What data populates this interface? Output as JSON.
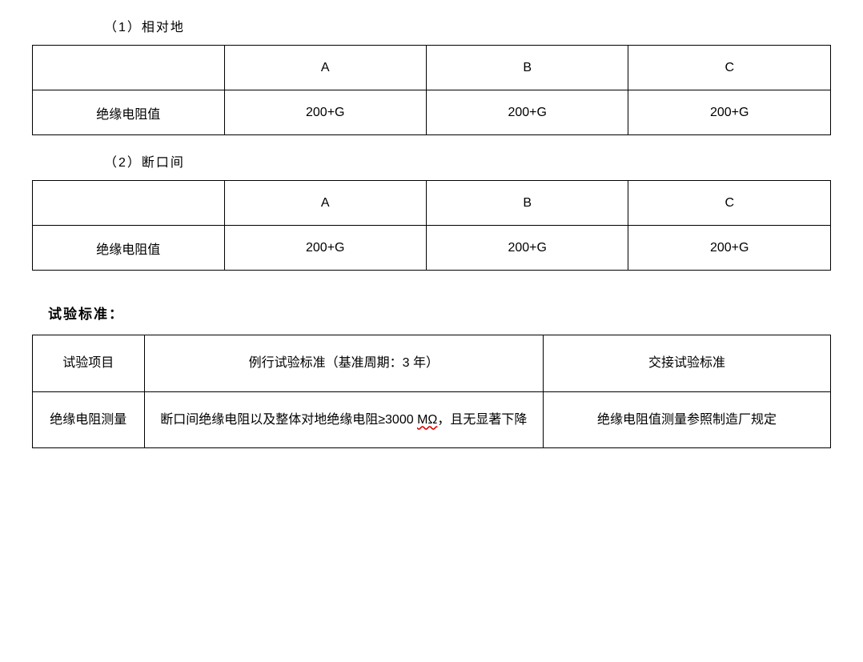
{
  "section1": {
    "label": "（1）相对地"
  },
  "table1": {
    "rowLabel": "绝缘电阻值",
    "headers": [
      "A",
      "B",
      "C"
    ],
    "values": [
      "200+G",
      "200+G",
      "200+G"
    ]
  },
  "section2": {
    "label": "（2）断口间"
  },
  "table2": {
    "rowLabel": "绝缘电阻值",
    "headers": [
      "A",
      "B",
      "C"
    ],
    "values": [
      "200+G",
      "200+G",
      "200+G"
    ]
  },
  "standardsHeading": "试验标准：",
  "standardsTable": {
    "header": {
      "col0": "试验项目",
      "col1": "例行试验标准（基准周期：3 年）",
      "col2": "交接试验标准"
    },
    "row": {
      "col0": "绝缘电阻测量",
      "col1_prefix": "断口间绝缘电阻以及整体对地绝缘电阻≥3000 ",
      "col1_unit": "MΩ",
      "col1_suffix": "，且无显著下降",
      "col2": "绝缘电阻值测量参照制造厂规定"
    }
  }
}
